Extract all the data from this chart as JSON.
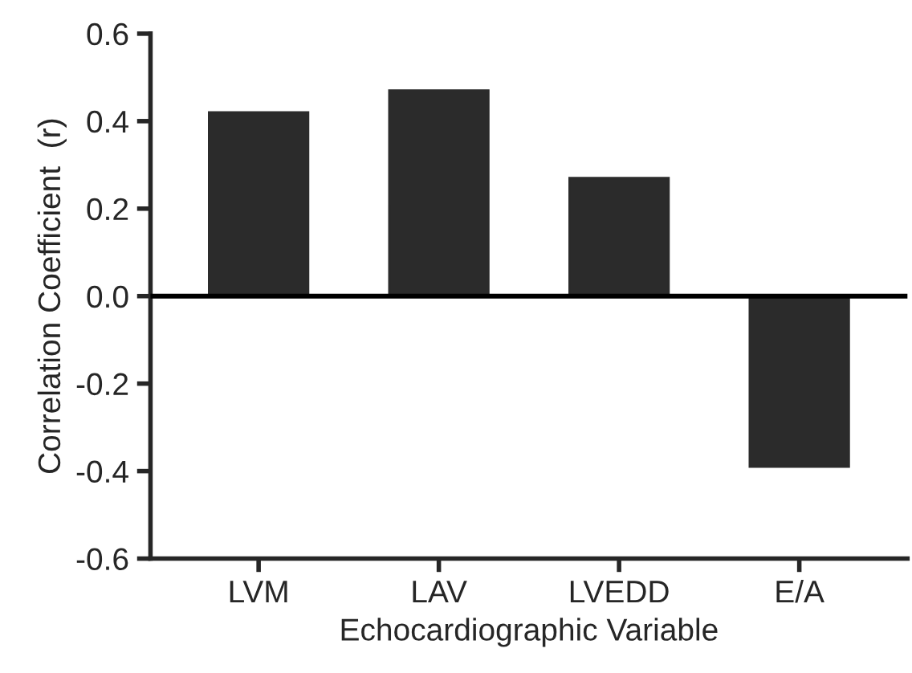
{
  "chart_data": {
    "type": "bar",
    "xlabel": "Echocardiographic Variable",
    "ylabel": "Correlation Coefficient  (r)",
    "categories": [
      "LVM",
      "LAV",
      "LVEDD",
      "E/A"
    ],
    "values": [
      0.42,
      0.47,
      0.27,
      -0.39
    ],
    "color": "#2b2b2b",
    "ylim": [
      -0.6,
      0.6
    ],
    "yticks": [
      -0.6,
      -0.4,
      -0.2,
      {
        "value": 0,
        "label": "0.0"
      },
      0.2,
      0.4,
      0.6
    ],
    "ref_lines": [
      {
        "axis": "y",
        "value": 0.0,
        "color": "#000000"
      }
    ],
    "grid": false,
    "legend": false
  }
}
